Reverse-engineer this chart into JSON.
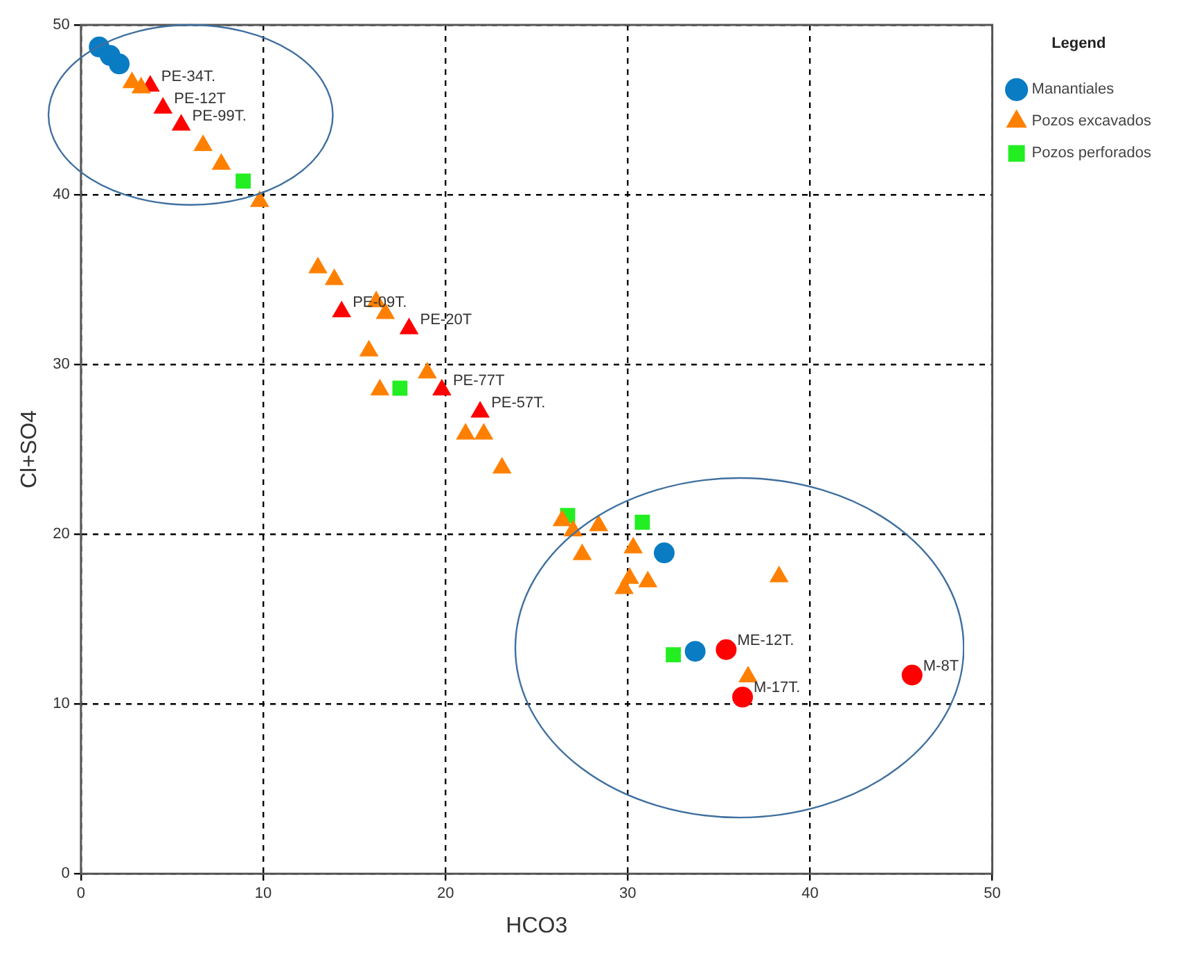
{
  "chart_data": {
    "type": "scatter",
    "xlabel": "HCO3",
    "ylabel": "Cl+SO4",
    "legend_title": "Legend",
    "legend": "right",
    "grid": true,
    "xlim": [
      0,
      50
    ],
    "xticks": [
      0,
      10,
      20,
      30,
      40,
      50
    ],
    "ylim": [
      0,
      50
    ],
    "yticks": [
      0,
      10,
      20,
      30,
      40,
      50
    ],
    "series": [
      {
        "name": "Manantiales",
        "color": "#0a7cc4",
        "marker": "circle",
        "x": [
          1.0,
          1.6,
          2.1,
          32.0,
          33.7
        ],
        "values": [
          48.7,
          48.2,
          47.7,
          18.9,
          13.1
        ]
      },
      {
        "name": "Pozos excavados",
        "color": "#ff8000",
        "marker": "triangle",
        "x": [
          2.8,
          3.3,
          6.7,
          7.7,
          9.8,
          13.0,
          13.9,
          16.2,
          16.7,
          15.8,
          16.4,
          19.0,
          21.1,
          22.1,
          23.1,
          26.4,
          27.0,
          28.4,
          27.5,
          30.3,
          30.1,
          31.1,
          29.8,
          38.3,
          36.6
        ],
        "values": [
          46.6,
          46.3,
          42.9,
          41.8,
          39.6,
          35.7,
          35.0,
          33.7,
          33.0,
          30.8,
          28.5,
          29.5,
          25.9,
          25.9,
          23.9,
          20.8,
          20.2,
          20.5,
          18.8,
          19.2,
          17.4,
          17.2,
          16.8,
          17.5,
          11.6
        ]
      },
      {
        "name": "Pozos perforados",
        "color": "#22ee22",
        "marker": "square",
        "x": [
          8.9,
          17.5,
          26.7,
          30.8,
          32.5
        ],
        "values": [
          40.8,
          28.6,
          21.1,
          20.7,
          12.9
        ]
      },
      {
        "color": "#ff0000",
        "marker": "triangle",
        "x": [
          3.8,
          4.5,
          5.5,
          14.3,
          18.0,
          19.8,
          21.9
        ],
        "values": [
          46.4,
          45.1,
          44.1,
          33.1,
          32.1,
          28.5,
          27.2
        ]
      },
      {
        "color": "#ff0000",
        "marker": "circle",
        "x": [
          35.4,
          36.3,
          45.6
        ],
        "values": [
          13.2,
          10.4,
          11.7
        ]
      }
    ],
    "annotations": [
      {
        "text": "PE-34T.",
        "x": 3.8,
        "y": 46.4
      },
      {
        "text": "PE-12T",
        "x": 4.5,
        "y": 45.1
      },
      {
        "text": "PE-99T.",
        "x": 5.5,
        "y": 44.1
      },
      {
        "text": "PE-09T.",
        "x": 14.3,
        "y": 33.1
      },
      {
        "text": "PE-20T",
        "x": 18.0,
        "y": 32.1
      },
      {
        "text": "PE-77T",
        "x": 19.8,
        "y": 28.5
      },
      {
        "text": "PE-57T.",
        "x": 21.9,
        "y": 27.2
      },
      {
        "text": "ME-12T.",
        "x": 35.4,
        "y": 13.2
      },
      {
        "text": "M-17T.",
        "x": 36.3,
        "y": 10.4
      },
      {
        "text": "M-8T",
        "x": 45.6,
        "y": 11.7
      }
    ]
  }
}
